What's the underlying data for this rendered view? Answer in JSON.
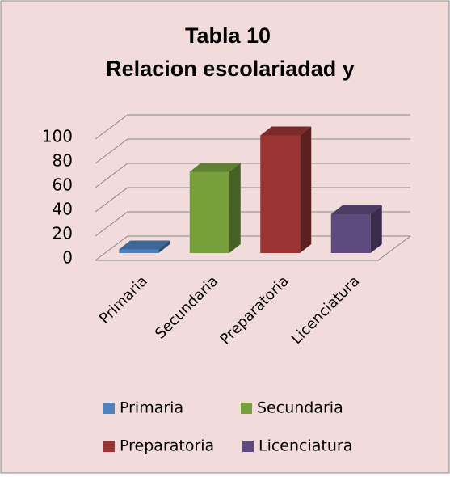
{
  "chart_data": {
    "type": "bar3d",
    "title": "Tabla 10",
    "subtitle": "Relacion escolariadad y",
    "categories": [
      "Primaria",
      "Secundaria",
      "Preparatoria",
      "Licenciatura"
    ],
    "values": [
      3,
      67,
      97,
      32
    ],
    "colors": [
      "#4f81bd",
      "#77a03c",
      "#9b3535",
      "#5f4a7e"
    ],
    "ylim": [
      0,
      100
    ],
    "yticks": [
      0,
      20,
      40,
      60,
      80,
      100
    ],
    "grid": true,
    "legend": "bottom"
  }
}
